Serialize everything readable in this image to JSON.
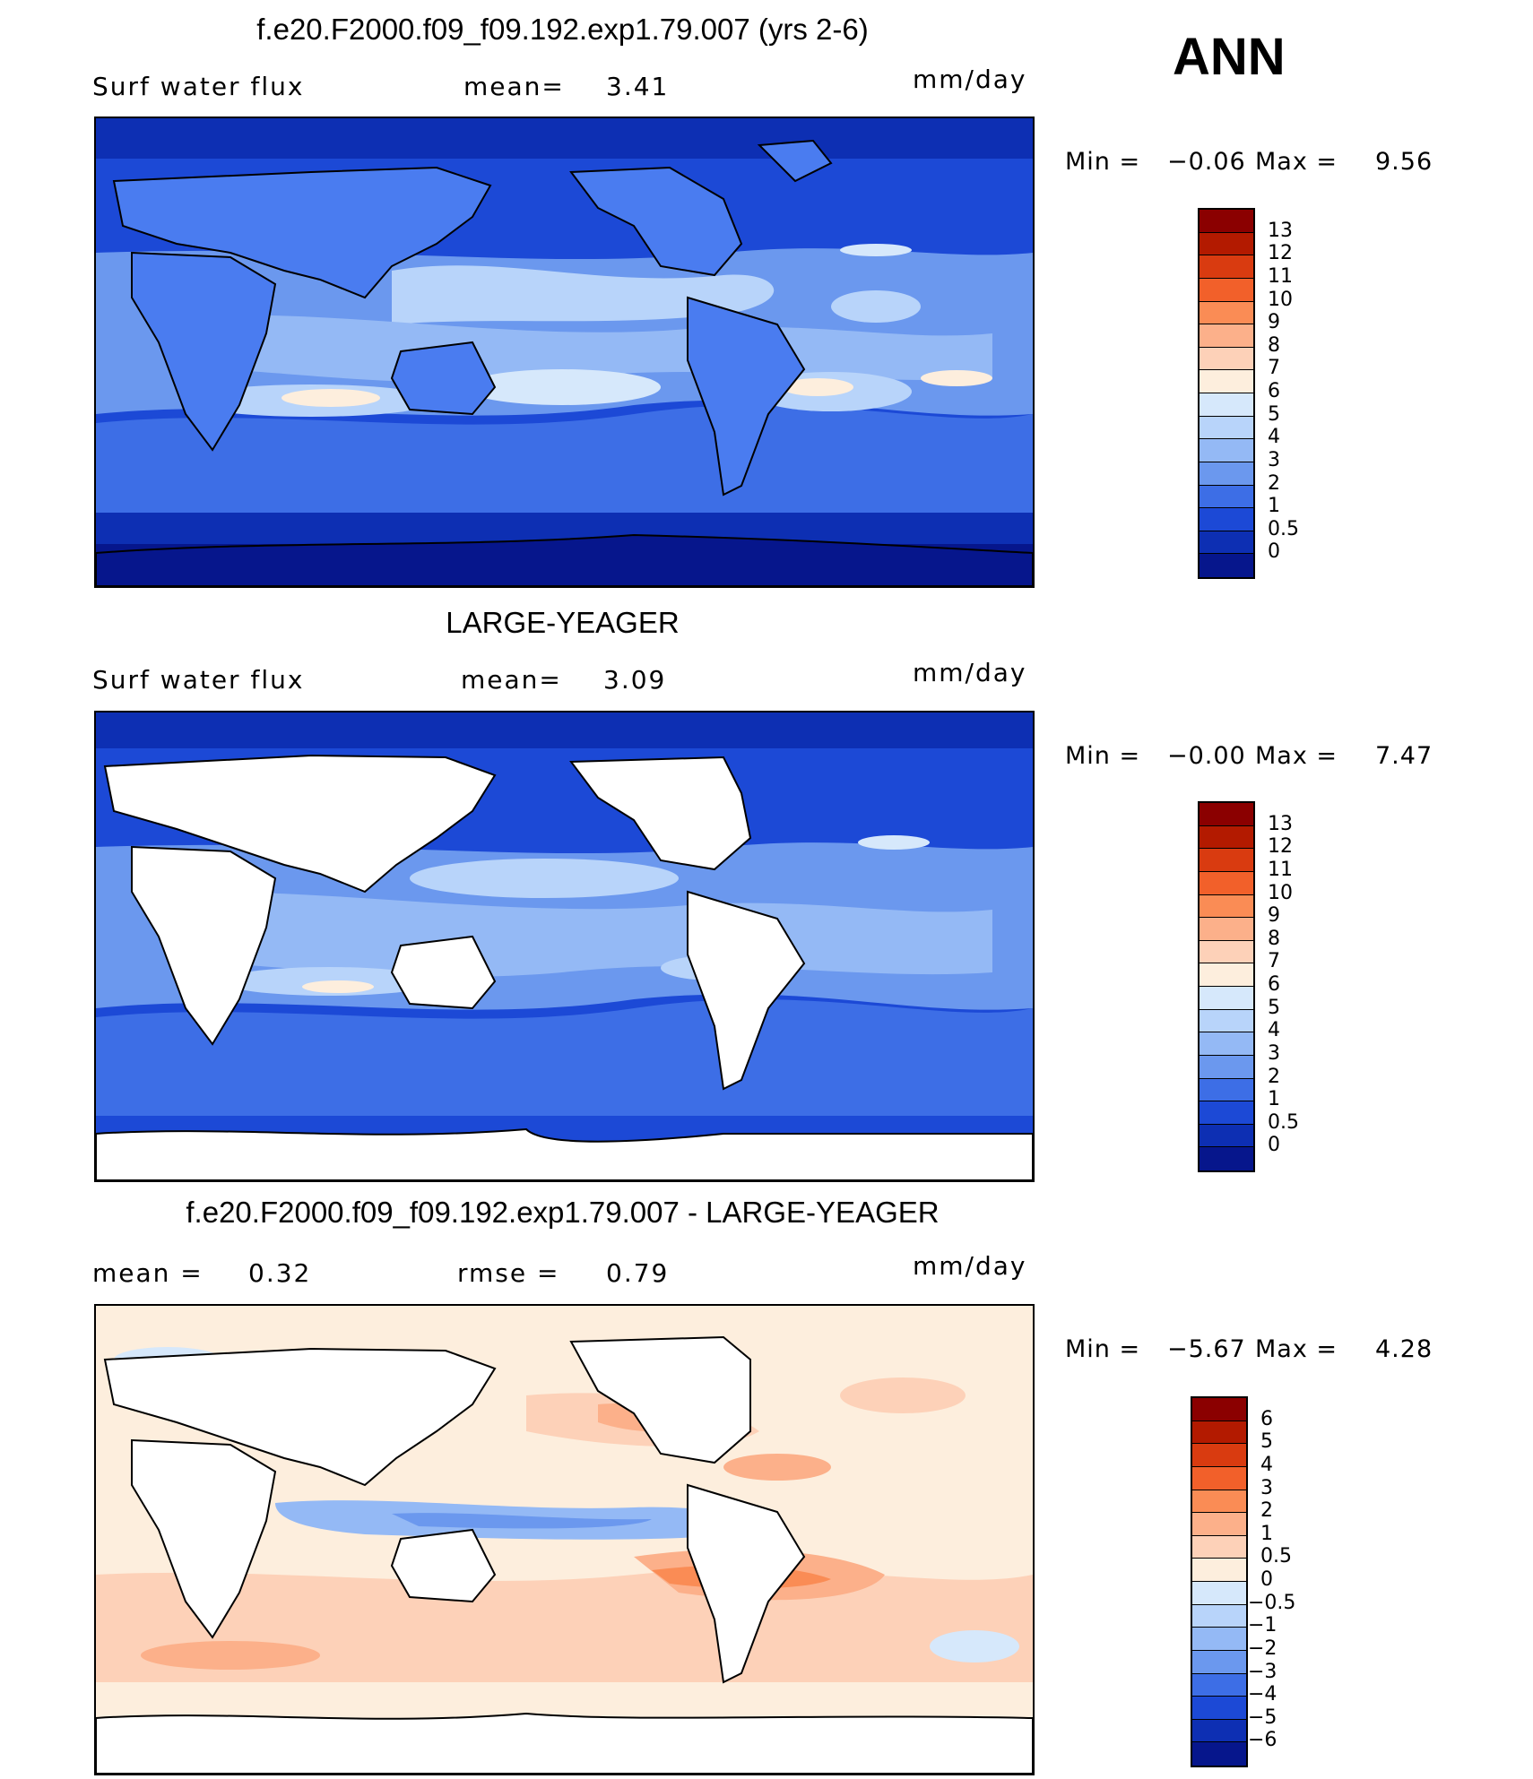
{
  "page": {
    "season": "ANN"
  },
  "panels": [
    {
      "title": "f.e20.F2000.f09_f09.192.exp1.79.007 (yrs 2-6)",
      "left_label": "Surf  water  flux",
      "stat1_label": "mean=",
      "stat1_value": "3.41",
      "stat2_label": "",
      "stat2_value": "",
      "units": "mm/day",
      "min_label": "Min  =",
      "min_value": "−0.06",
      "max_label": "Max  =",
      "max_value": "9.56",
      "colorbar_labels": [
        "13",
        "12",
        "11",
        "10",
        "9",
        "8",
        "7",
        "6",
        "5",
        "4",
        "3",
        "2",
        "1",
        "0.5",
        "0"
      ],
      "colorbar_colors": [
        "#8b0000",
        "#b31a00",
        "#d93b10",
        "#f2602a",
        "#fa8c55",
        "#fcb08a",
        "#fdd1b8",
        "#fdeedd",
        "#d6e8fb",
        "#b8d4fa",
        "#94b9f5",
        "#6b98ee",
        "#3d6ee6",
        "#1c49d6",
        "#0d2fb3",
        "#06168c"
      ],
      "map_style": "field",
      "land_fill": "#4a7cf0"
    },
    {
      "title": "LARGE-YEAGER",
      "left_label": "Surf  water  flux",
      "stat1_label": "mean=",
      "stat1_value": "3.09",
      "stat2_label": "",
      "stat2_value": "",
      "units": "mm/day",
      "min_label": "Min  =",
      "min_value": "−0.00",
      "max_label": "Max  =",
      "max_value": "7.47",
      "colorbar_labels": [
        "13",
        "12",
        "11",
        "10",
        "9",
        "8",
        "7",
        "6",
        "5",
        "4",
        "3",
        "2",
        "1",
        "0.5",
        "0"
      ],
      "colorbar_colors": [
        "#8b0000",
        "#b31a00",
        "#d93b10",
        "#f2602a",
        "#fa8c55",
        "#fcb08a",
        "#fdd1b8",
        "#fdeedd",
        "#d6e8fb",
        "#b8d4fa",
        "#94b9f5",
        "#6b98ee",
        "#3d6ee6",
        "#1c49d6",
        "#0d2fb3",
        "#06168c"
      ],
      "map_style": "ocean-only",
      "land_fill": "#ffffff"
    },
    {
      "title": "f.e20.F2000.f09_f09.192.exp1.79.007 - LARGE-YEAGER",
      "left_label": "mean  =",
      "stat1_label": "0.32",
      "stat1_value": "",
      "stat2_label": "rmse  =",
      "stat2_value": "0.79",
      "units": "mm/day",
      "min_label": "Min  =",
      "min_value": "−5.67",
      "max_label": "Max  =",
      "max_value": "4.28",
      "colorbar_labels": [
        "6",
        "5",
        "4",
        "3",
        "2",
        "1",
        "0.5",
        "0",
        "−0.5",
        "−1",
        "−2",
        "−3",
        "−4",
        "−5",
        "−6"
      ],
      "colorbar_colors": [
        "#8b0000",
        "#b31a00",
        "#d93b10",
        "#f2602a",
        "#fa8c55",
        "#fcb08a",
        "#fdd1b8",
        "#fdeedd",
        "#d6e8fb",
        "#b8d4fa",
        "#94b9f5",
        "#6b98ee",
        "#3d6ee6",
        "#1c49d6",
        "#0d2fb3",
        "#06168c"
      ],
      "map_style": "difference",
      "land_fill": "#ffffff"
    }
  ]
}
